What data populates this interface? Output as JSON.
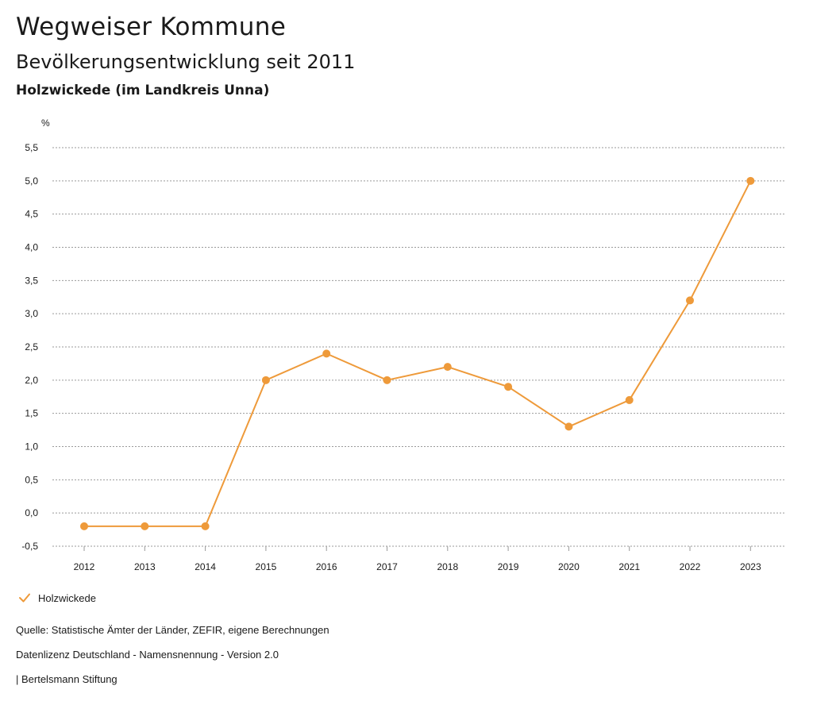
{
  "header": {
    "title": "Wegweiser Kommune",
    "subtitle": "Bevölkerungsentwicklung seit 2011",
    "place": "Holzwickede (im Landkreis Unna)"
  },
  "legend": {
    "label": "Holzwickede",
    "icon": "check-icon"
  },
  "footer": {
    "source": "Quelle: Statistische Ämter der Länder, ZEFIR, eigene Berechnungen",
    "license": "Datenlizenz Deutschland - Namensnennung - Version 2.0",
    "credit": "| Bertelsmann Stiftung"
  },
  "colors": {
    "series": "#ee9a3a",
    "grid": "#9a9a9a",
    "text": "#1a1a1a"
  },
  "chart_data": {
    "type": "line",
    "title": "",
    "xlabel": "",
    "ylabel": "%",
    "categories": [
      "2012",
      "2013",
      "2014",
      "2015",
      "2016",
      "2017",
      "2018",
      "2019",
      "2020",
      "2021",
      "2022",
      "2023"
    ],
    "series": [
      {
        "name": "Holzwickede",
        "values": [
          -0.2,
          -0.2,
          -0.2,
          2.0,
          2.4,
          2.0,
          2.2,
          1.9,
          1.3,
          1.7,
          3.2,
          5.0
        ]
      }
    ],
    "ylim": [
      -0.5,
      5.5
    ],
    "yticks": [
      -0.5,
      0.0,
      0.5,
      1.0,
      1.5,
      2.0,
      2.5,
      3.0,
      3.5,
      4.0,
      4.5,
      5.0,
      5.5
    ],
    "ytick_labels": [
      "-0,5",
      "0,0",
      "0,5",
      "1,0",
      "1,5",
      "2,0",
      "2,5",
      "3,0",
      "3,5",
      "4,0",
      "4,5",
      "5,0",
      "5,5"
    ],
    "grid": true,
    "legend_position": "bottom-left"
  }
}
